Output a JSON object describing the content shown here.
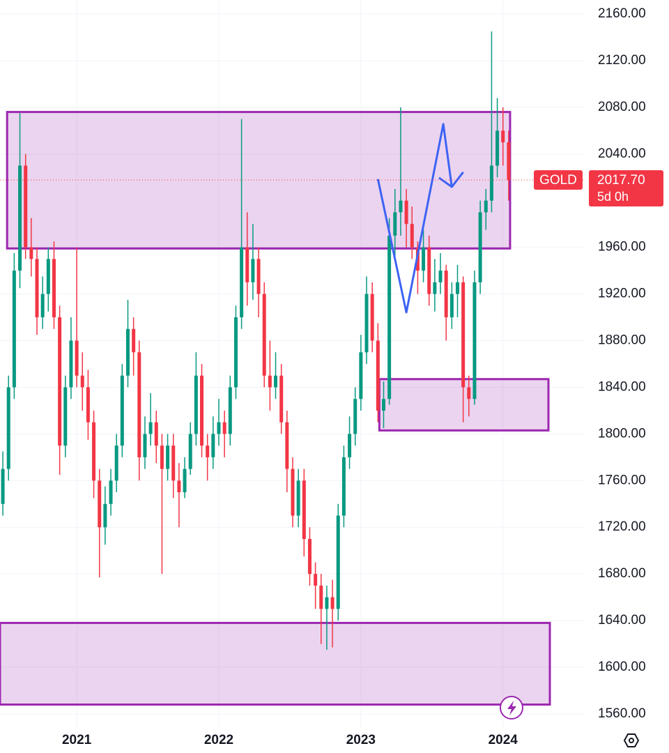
{
  "chart_data": {
    "type": "candlestick",
    "symbol": "GOLD",
    "last_price": {
      "value": 2017.7,
      "label": "2017.70"
    },
    "countdown": "5d 0h",
    "xlim": [
      2020.46,
      2024.58
    ],
    "xticks": [
      2021,
      2022,
      2023,
      2024
    ],
    "ylim": [
      1548,
      2172
    ],
    "yticks": [
      {
        "value": 2160,
        "label": "2160.00"
      },
      {
        "value": 2120,
        "label": "2120.00"
      },
      {
        "value": 2080,
        "label": "2080.00"
      },
      {
        "value": 2040,
        "label": "2040.00"
      },
      {
        "value": 1960,
        "label": "1960.00"
      },
      {
        "value": 1920,
        "label": "1920.00"
      },
      {
        "value": 1880,
        "label": "1880.00"
      },
      {
        "value": 1840,
        "label": "1840.00"
      },
      {
        "value": 1800,
        "label": "1800.00"
      },
      {
        "value": 1760,
        "label": "1760.00"
      },
      {
        "value": 1720,
        "label": "1720.00"
      },
      {
        "value": 1680,
        "label": "1680.00"
      },
      {
        "value": 1640,
        "label": "1640.00"
      },
      {
        "value": 1600,
        "label": "1600.00"
      },
      {
        "value": 1560,
        "label": "1560.00"
      }
    ],
    "grid": true,
    "up_color": "#089981",
    "down_color": "#f23645",
    "x": [
      2020.48,
      2020.52,
      2020.56,
      2020.6,
      2020.64,
      2020.68,
      2020.72,
      2020.76,
      2020.8,
      2020.84,
      2020.88,
      2020.92,
      2020.96,
      2021.0,
      2021.04,
      2021.08,
      2021.12,
      2021.16,
      2021.2,
      2021.24,
      2021.28,
      2021.32,
      2021.36,
      2021.4,
      2021.44,
      2021.48,
      2021.52,
      2021.56,
      2021.6,
      2021.64,
      2021.68,
      2021.72,
      2021.76,
      2021.8,
      2021.84,
      2021.88,
      2021.92,
      2021.96,
      2022.0,
      2022.04,
      2022.08,
      2022.12,
      2022.16,
      2022.2,
      2022.24,
      2022.28,
      2022.32,
      2022.36,
      2022.4,
      2022.44,
      2022.48,
      2022.52,
      2022.56,
      2022.6,
      2022.64,
      2022.68,
      2022.72,
      2022.76,
      2022.8,
      2022.84,
      2022.88,
      2022.92,
      2022.96,
      2023.0,
      2023.04,
      2023.08,
      2023.12,
      2023.16,
      2023.2,
      2023.24,
      2023.28,
      2023.32,
      2023.36,
      2023.4,
      2023.44,
      2023.48,
      2023.52,
      2023.56,
      2023.6,
      2023.64,
      2023.68,
      2023.72,
      2023.76,
      2023.8,
      2023.84,
      2023.88,
      2023.92,
      2023.96,
      2024.0,
      2024.04
    ],
    "open": [
      1740,
      1770,
      1840,
      1940,
      2030,
      1960,
      1950,
      1900,
      1920,
      1950,
      1900,
      1790,
      1840,
      1880,
      1850,
      1840,
      1810,
      1760,
      1720,
      1740,
      1760,
      1790,
      1850,
      1890,
      1870,
      1780,
      1800,
      1810,
      1790,
      1770,
      1790,
      1760,
      1750,
      1770,
      1800,
      1850,
      1790,
      1780,
      1800,
      1810,
      1800,
      1840,
      1900,
      1960,
      1930,
      1950,
      1920,
      1850,
      1840,
      1850,
      1810,
      1770,
      1730,
      1760,
      1710,
      1680,
      1670,
      1650,
      1660,
      1650,
      1730,
      1780,
      1800,
      1830,
      1870,
      1920,
      1880,
      1820,
      1830,
      1970,
      1990,
      2000,
      1980,
      1960,
      1940,
      1960,
      1920,
      1930,
      1940,
      1900,
      1920,
      1930,
      1840,
      1830,
      1930,
      1990,
      2000,
      2030,
      2060,
      2050
    ],
    "high": [
      1785,
      1850,
      1955,
      2075,
      2040,
      1985,
      1960,
      1935,
      1960,
      1965,
      1910,
      1850,
      1900,
      1960,
      1870,
      1855,
      1820,
      1770,
      1755,
      1770,
      1800,
      1860,
      1915,
      1900,
      1880,
      1815,
      1835,
      1820,
      1800,
      1800,
      1800,
      1775,
      1780,
      1810,
      1870,
      1860,
      1800,
      1815,
      1830,
      1820,
      1850,
      1910,
      2070,
      1990,
      1980,
      1960,
      1930,
      1880,
      1870,
      1860,
      1820,
      1780,
      1770,
      1770,
      1720,
      1690,
      1680,
      1670,
      1675,
      1740,
      1790,
      1815,
      1840,
      1885,
      1935,
      1930,
      1895,
      1845,
      1985,
      2010,
      2080,
      2010,
      1995,
      1965,
      1975,
      1970,
      1950,
      1955,
      1945,
      1930,
      1945,
      1935,
      1850,
      1940,
      2000,
      2010,
      2145,
      2088,
      2080,
      2060
    ],
    "low": [
      1730,
      1760,
      1830,
      1925,
      1950,
      1935,
      1885,
      1890,
      1905,
      1890,
      1765,
      1780,
      1830,
      1840,
      1820,
      1795,
      1745,
      1677,
      1705,
      1730,
      1750,
      1780,
      1840,
      1850,
      1760,
      1770,
      1790,
      1775,
      1680,
      1760,
      1745,
      1720,
      1745,
      1765,
      1790,
      1780,
      1760,
      1770,
      1790,
      1780,
      1790,
      1830,
      1890,
      1910,
      1915,
      1900,
      1840,
      1820,
      1830,
      1800,
      1750,
      1720,
      1720,
      1695,
      1670,
      1650,
      1620,
      1615,
      1617,
      1640,
      1720,
      1770,
      1790,
      1820,
      1860,
      1870,
      1810,
      1805,
      1825,
      1950,
      1970,
      1960,
      1950,
      1920,
      1930,
      1910,
      1905,
      1920,
      1880,
      1890,
      1900,
      1810,
      1815,
      1825,
      1920,
      1975,
      1990,
      2020,
      2030,
      2000
    ],
    "close": [
      1770,
      1840,
      1940,
      2030,
      1960,
      1950,
      1900,
      1920,
      1950,
      1900,
      1790,
      1840,
      1880,
      1850,
      1840,
      1810,
      1760,
      1720,
      1740,
      1760,
      1790,
      1850,
      1890,
      1870,
      1780,
      1800,
      1810,
      1790,
      1770,
      1790,
      1760,
      1750,
      1770,
      1800,
      1850,
      1790,
      1780,
      1800,
      1810,
      1800,
      1840,
      1900,
      1960,
      1930,
      1950,
      1920,
      1850,
      1840,
      1850,
      1810,
      1770,
      1730,
      1760,
      1710,
      1680,
      1670,
      1650,
      1660,
      1650,
      1730,
      1780,
      1800,
      1830,
      1870,
      1920,
      1880,
      1820,
      1830,
      1970,
      1990,
      2000,
      1980,
      1960,
      1940,
      1960,
      1920,
      1930,
      1940,
      1900,
      1920,
      1930,
      1840,
      1830,
      1930,
      1990,
      2000,
      2030,
      2060,
      2050,
      2017.7
    ],
    "zones": [
      {
        "x0": 2020.51,
        "x1": 2024.05,
        "y0": 1959,
        "y1": 2076
      },
      {
        "x0": 2023.13,
        "x1": 2024.32,
        "y0": 1803,
        "y1": 1847
      },
      {
        "x0": 2020.46,
        "x1": 2024.33,
        "y0": 1568,
        "y1": 1638
      }
    ],
    "zone_color": "#9c27b0",
    "drawings": [
      {
        "color": "#3d63f5",
        "x": [
          2023.12,
          2023.32,
          2023.58,
          2023.64
        ],
        "y": [
          2018.4,
          1904.2,
          2065.6,
          2011.8
        ]
      },
      {
        "color": "#3d63f5",
        "x": [
          2023.55,
          2023.64,
          2023.72
        ],
        "y": [
          2019.6,
          2011.8,
          2024.4
        ]
      }
    ]
  }
}
